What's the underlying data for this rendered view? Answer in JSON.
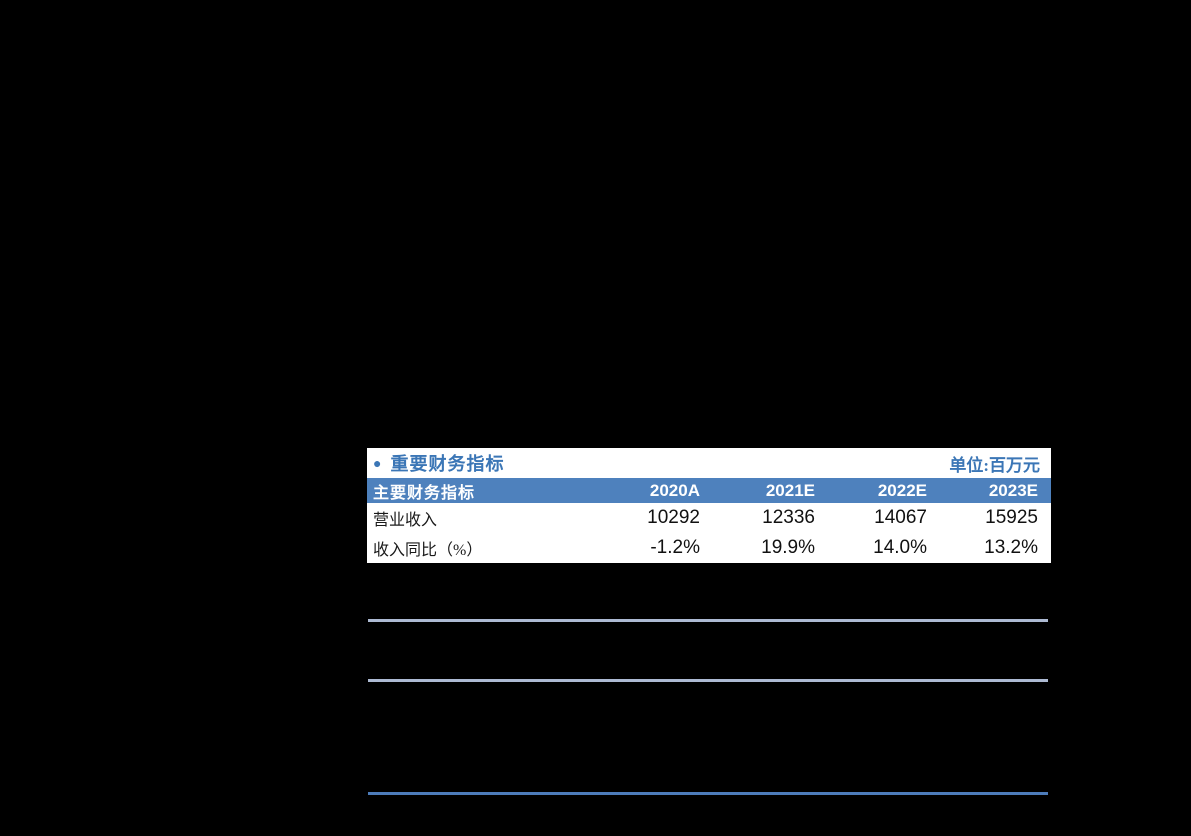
{
  "financial_table": {
    "bullet_icon": "●",
    "section_title": "重要财务指标",
    "unit_label": "单位:百万元",
    "columns": {
      "label": "主要财务指标",
      "y1": "2020A",
      "y2": "2021E",
      "y3": "2022E",
      "y4": "2023E"
    },
    "rows": [
      {
        "label": "营业收入",
        "v1": "10292",
        "v2": "12336",
        "v3": "14067",
        "v4": "15925"
      },
      {
        "label": "收入同比（%）",
        "v1": "-1.2%",
        "v2": "19.9%",
        "v3": "14.0%",
        "v4": "13.2%"
      }
    ],
    "colors": {
      "header_bg": "#4e81bd",
      "title_text": "#3b76b6",
      "header_text": "#ffffff",
      "body_text": "#111111",
      "table_bg": "#ffffff",
      "divider_light": "#adbad3",
      "divider_dark": "#4d7cba",
      "page_bg": "#000000"
    }
  },
  "chart_data": {
    "type": "table",
    "title": "重要财务指标",
    "unit": "百万元",
    "categories": [
      "2020A",
      "2021E",
      "2022E",
      "2023E"
    ],
    "series": [
      {
        "name": "营业收入",
        "values": [
          10292,
          12336,
          14067,
          15925
        ]
      },
      {
        "name": "收入同比（%）",
        "values": [
          -1.2,
          19.9,
          14.0,
          13.2
        ]
      }
    ]
  }
}
